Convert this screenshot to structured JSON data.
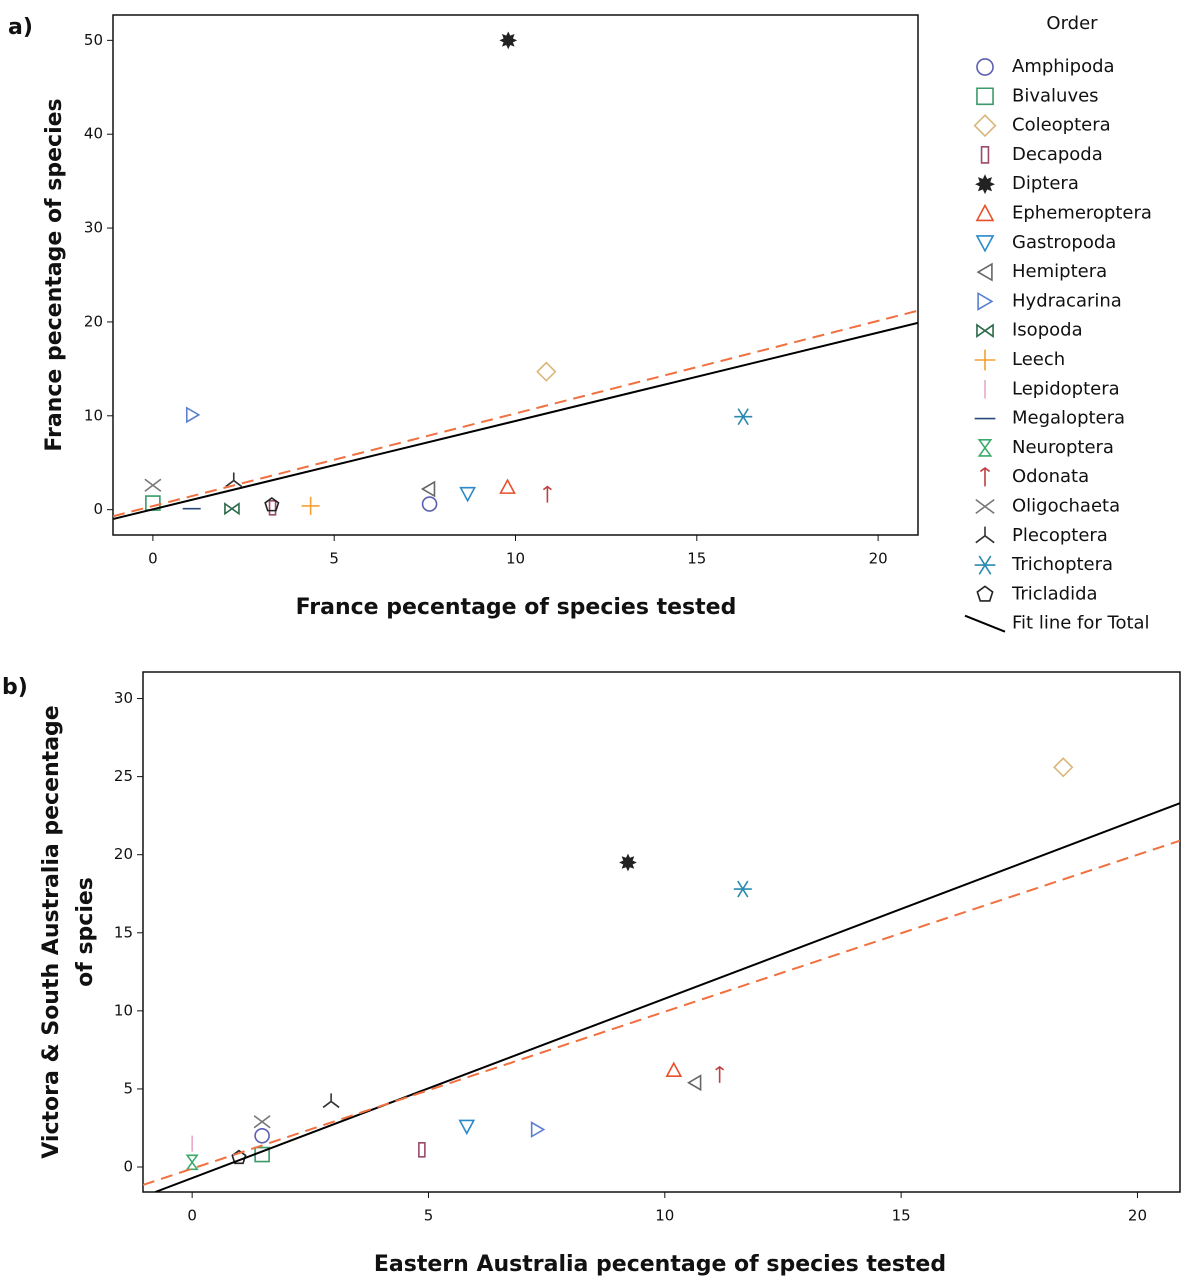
{
  "chart_data": [
    {
      "type": "scatter",
      "label": "a)",
      "x_label": "France pecentage of species tested",
      "y_label": "France pecentage of species",
      "xlim": [
        -1.1,
        21.1
      ],
      "ylim": [
        -2.7,
        52.7
      ],
      "xticks": [
        0,
        5,
        10,
        15,
        20
      ],
      "yticks": [
        0,
        10,
        20,
        30,
        40,
        50
      ],
      "grid": false,
      "legend": "right",
      "legend_title": "Order",
      "series": [
        {
          "name": "Amphipoda",
          "marker": "circle",
          "color": "#5b5fb0",
          "x": [
            7.63
          ],
          "values": [
            0.6
          ]
        },
        {
          "name": "Bivaluves",
          "marker": "square",
          "color": "#3a9a6a",
          "x": [
            0
          ],
          "values": [
            0.7
          ]
        },
        {
          "name": "Coleoptera",
          "marker": "diamond",
          "color": "#d9b77a",
          "x": [
            10.85
          ],
          "values": [
            14.7
          ]
        },
        {
          "name": "Decapoda",
          "marker": "rect-tall",
          "color": "#9b4a6a",
          "x": [
            3.3
          ],
          "values": [
            0.2
          ]
        },
        {
          "name": "Diptera",
          "marker": "gear",
          "color": "#222222",
          "x": [
            9.8
          ],
          "values": [
            50
          ]
        },
        {
          "name": "Ephemeroptera",
          "marker": "triangle-up",
          "color": "#e8502a",
          "x": [
            9.78
          ],
          "values": [
            2.4
          ]
        },
        {
          "name": "Gastropoda",
          "marker": "triangle-down",
          "color": "#2a8ac9",
          "x": [
            8.68
          ],
          "values": [
            1.7
          ]
        },
        {
          "name": "Hemiptera",
          "marker": "triangle-left",
          "color": "#666666",
          "x": [
            7.6
          ],
          "values": [
            2.2
          ]
        },
        {
          "name": "Hydracarina",
          "marker": "triangle-right",
          "color": "#5a7fd0",
          "x": [
            1.1
          ],
          "values": [
            10.1
          ]
        },
        {
          "name": "Isopoda",
          "marker": "bowtie",
          "color": "#2a6a4a",
          "x": [
            2.18
          ],
          "values": [
            0.1
          ]
        },
        {
          "name": "Leech",
          "marker": "plus",
          "color": "#f5a030",
          "x": [
            4.35
          ],
          "values": [
            0.4
          ]
        },
        {
          "name": "Lepidoptera",
          "marker": "vbar",
          "color": "#e8a8c8",
          "x": [],
          "values": []
        },
        {
          "name": "Megaloptera",
          "marker": "dash",
          "color": "#2a4a7a",
          "x": [
            1.07
          ],
          "values": [
            0.1
          ]
        },
        {
          "name": "Neuroptera",
          "marker": "hourglass",
          "color": "#3aaa6a",
          "x": [],
          "values": []
        },
        {
          "name": "Odonata",
          "marker": "arrow-up",
          "color": "#c04040",
          "x": [
            10.88
          ],
          "values": [
            1.6
          ]
        },
        {
          "name": "Oligochaeta",
          "marker": "x",
          "color": "#777777",
          "x": [
            0
          ],
          "values": [
            2.6
          ]
        },
        {
          "name": "Plecoptera",
          "marker": "tri-down",
          "color": "#333333",
          "x": [
            2.23
          ],
          "values": [
            3.1
          ]
        },
        {
          "name": "Trichoptera",
          "marker": "asterisk",
          "color": "#2a8ab0",
          "x": [
            16.28
          ],
          "values": [
            9.9
          ]
        },
        {
          "name": "Tricladida",
          "marker": "pentagon",
          "color": "#222222",
          "x": [
            3.28
          ],
          "values": [
            0.5
          ]
        },
        {
          "name": "Fit line for Total",
          "type": "line",
          "color": "#000000",
          "x": [
            -1.1,
            21.1
          ],
          "values": [
            -1,
            19.9
          ]
        },
        {
          "type": "line",
          "dash": true,
          "color": "#f07040",
          "x": [
            -1.1,
            21.1
          ],
          "values": [
            -0.7,
            21.2
          ]
        }
      ]
    },
    {
      "type": "scatter",
      "label": "b)",
      "x_label": "Eastern Australia pecentage of species tested",
      "y_label": [
        "Victora & South Australia pecentage",
        "of spcies"
      ],
      "xlim": [
        -1.04,
        20.9
      ],
      "ylim": [
        -1.6,
        31.7
      ],
      "xticks": [
        0,
        5,
        10,
        15,
        20
      ],
      "yticks": [
        0,
        5,
        10,
        15,
        20,
        25,
        30
      ],
      "grid": false,
      "series": [
        {
          "marker": "circle",
          "color": "#5b5fb0",
          "x": [
            1.48
          ],
          "values": [
            2.0
          ]
        },
        {
          "marker": "square",
          "color": "#3a9a6a",
          "x": [
            1.48
          ],
          "values": [
            0.8
          ]
        },
        {
          "marker": "diamond",
          "color": "#d9b77a",
          "x": [
            18.43
          ],
          "values": [
            25.6
          ]
        },
        {
          "marker": "rect-tall",
          "color": "#9b4a6a",
          "x": [
            4.86
          ],
          "values": [
            1.1
          ]
        },
        {
          "marker": "gear",
          "color": "#222222",
          "x": [
            9.22
          ],
          "values": [
            19.5
          ]
        },
        {
          "marker": "triangle-up",
          "color": "#e8502a",
          "x": [
            10.19
          ],
          "values": [
            6.2
          ]
        },
        {
          "marker": "triangle-down",
          "color": "#2a8ac9",
          "x": [
            5.81
          ],
          "values": [
            2.6
          ]
        },
        {
          "marker": "triangle-left",
          "color": "#666666",
          "x": [
            10.63
          ],
          "values": [
            5.4
          ]
        },
        {
          "marker": "triangle-right",
          "color": "#5a7fd0",
          "x": [
            7.31
          ],
          "values": [
            2.4
          ]
        },
        {
          "marker": "vbar",
          "color": "#e8a8c8",
          "x": [
            0
          ],
          "values": [
            1.5
          ]
        },
        {
          "marker": "hourglass",
          "color": "#3aaa6a",
          "x": [
            0
          ],
          "values": [
            0.3
          ]
        },
        {
          "marker": "arrow-up",
          "color": "#c04040",
          "x": [
            11.16
          ],
          "values": [
            5.9
          ]
        },
        {
          "marker": "x",
          "color": "#777777",
          "x": [
            1.48
          ],
          "values": [
            2.9
          ]
        },
        {
          "marker": "tri-down",
          "color": "#333333",
          "x": [
            2.94
          ],
          "values": [
            4.2
          ]
        },
        {
          "marker": "asterisk",
          "color": "#2a8ab0",
          "x": [
            11.65
          ],
          "values": [
            17.8
          ]
        },
        {
          "marker": "pentagon",
          "color": "#222222",
          "x": [
            0.99
          ],
          "values": [
            0.6
          ]
        },
        {
          "type": "line",
          "color": "#000000",
          "x": [
            -0.78,
            20.9
          ],
          "values": [
            -1.6,
            23.3
          ]
        },
        {
          "type": "line",
          "dash": true,
          "color": "#f07040",
          "x": [
            -1.04,
            20.9
          ],
          "values": [
            -1.15,
            20.9
          ]
        }
      ]
    }
  ]
}
